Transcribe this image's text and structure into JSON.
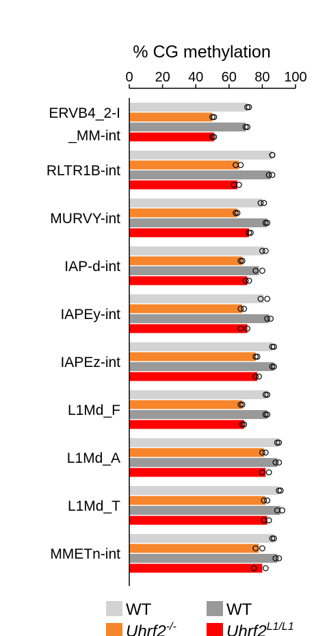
{
  "chart_data": {
    "type": "bar",
    "orientation": "horizontal",
    "title": "% CG methylation",
    "xlim": [
      0,
      100
    ],
    "x_ticks": [
      "0",
      "20",
      "40",
      "60",
      "80",
      "100"
    ],
    "categories": [
      [
        "ERVB4_2-I",
        "_MM-int"
      ],
      [
        "RLTR1B-int"
      ],
      [
        "MURVY-int"
      ],
      [
        "IAP-d-int"
      ],
      [
        "IAPEy-int"
      ],
      [
        "IAPEz-int"
      ],
      [
        "L1Md_F"
      ],
      [
        "L1Md_A"
      ],
      [
        "L1Md_T"
      ],
      [
        "MMETn-int"
      ]
    ],
    "series": [
      {
        "color": "#d3d3d3",
        "values": [
          71,
          86,
          80,
          81,
          81,
          86,
          83,
          90,
          90,
          87
        ],
        "points": [
          [
            71,
            72
          ],
          [
            86,
            86
          ],
          [
            79,
            81
          ],
          [
            80,
            82
          ],
          [
            79,
            83
          ],
          [
            86,
            87
          ],
          [
            82,
            83
          ],
          [
            89,
            90
          ],
          [
            90,
            91
          ],
          [
            86,
            87
          ]
        ]
      },
      {
        "color": "#f7852b",
        "values": [
          50,
          66,
          65,
          68,
          68,
          76,
          68,
          81,
          82,
          78
        ],
        "points": [
          [
            50,
            51
          ],
          [
            64,
            67
          ],
          [
            64,
            65
          ],
          [
            67,
            68
          ],
          [
            67,
            69
          ],
          [
            76,
            77
          ],
          [
            67,
            68
          ],
          [
            80,
            82
          ],
          [
            81,
            83
          ],
          [
            76,
            80
          ]
        ]
      },
      {
        "color": "#999999",
        "values": [
          70,
          85,
          83,
          78,
          84,
          87,
          83,
          89,
          91,
          89
        ],
        "points": [
          [
            70,
            71
          ],
          [
            84,
            86
          ],
          [
            82,
            83
          ],
          [
            76,
            80
          ],
          [
            83,
            85
          ],
          [
            86,
            87
          ],
          [
            82,
            83
          ],
          [
            88,
            90
          ],
          [
            89,
            92
          ],
          [
            88,
            90
          ]
        ]
      },
      {
        "color": "#ff0000",
        "values": [
          51,
          65,
          72,
          71,
          71,
          77,
          69,
          82,
          83,
          80
        ],
        "points": [
          [
            50,
            51
          ],
          [
            63,
            66
          ],
          [
            72,
            73
          ],
          [
            70,
            72
          ],
          [
            67,
            71
          ],
          [
            76,
            78
          ],
          [
            68,
            69
          ],
          [
            80,
            84
          ],
          [
            81,
            84
          ],
          [
            75,
            82
          ]
        ]
      }
    ],
    "legend": {
      "position": "bottom",
      "items": [
        {
          "label": "WT",
          "label_sup": "",
          "italic": false,
          "color": "#d3d3d3"
        },
        {
          "label": "WT",
          "label_sup": "",
          "italic": false,
          "color": "#999999"
        },
        {
          "label": "Uhrf2",
          "label_sup": "-/-",
          "italic": true,
          "color": "#f7852b"
        },
        {
          "label": "Uhrf2",
          "label_sup": "L1/L1",
          "italic": true,
          "color": "#ff0000"
        }
      ]
    }
  }
}
